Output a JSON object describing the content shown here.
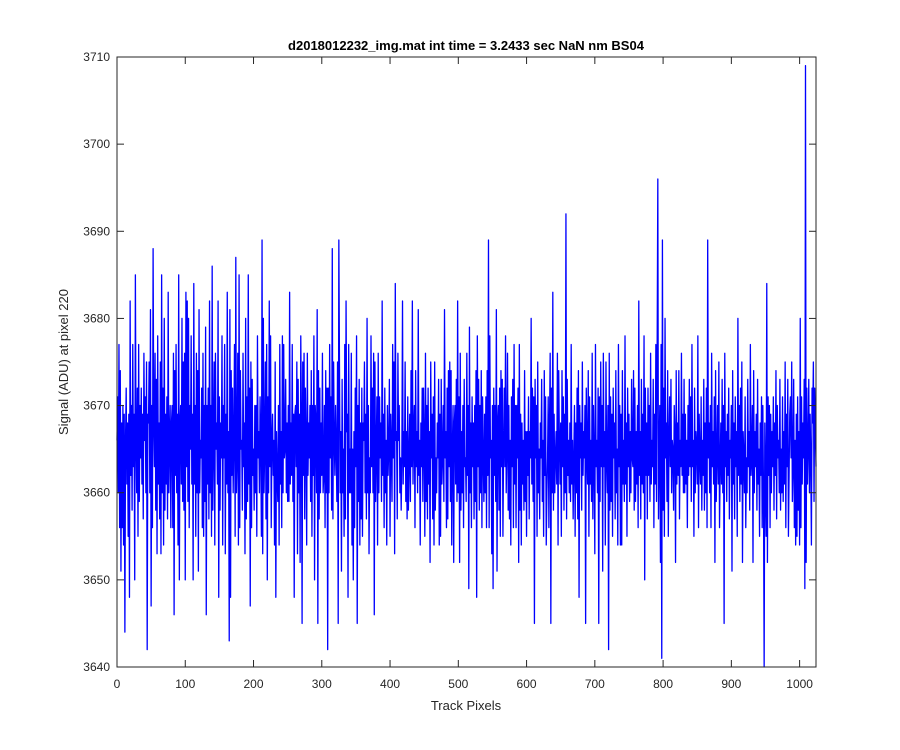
{
  "chart_data": {
    "type": "line",
    "title": "d2018012232_img.mat int time = 3.2433 sec  NaN nm BS04",
    "xlabel": "Track Pixels",
    "ylabel": "Signal (ADU) at pixel 220",
    "xlim": [
      0,
      1024
    ],
    "ylim": [
      3640,
      3710
    ],
    "xticks": [
      0,
      100,
      200,
      300,
      400,
      500,
      600,
      700,
      800,
      900,
      1000
    ],
    "yticks": [
      3640,
      3650,
      3660,
      3670,
      3680,
      3690,
      3700,
      3710
    ],
    "grid": false,
    "box": true,
    "line_color": "#0000ff",
    "axis_color": "#262626",
    "series": [
      {
        "values": [
          3666,
          3671,
          3660,
          3677,
          3656,
          3674,
          3651,
          3668,
          3656,
          3670,
          3654,
          3669,
          3644,
          3666,
          3672,
          3661,
          3668,
          3655,
          3669,
          3648,
          3682,
          3662,
          3670,
          3658,
          3677,
          3663,
          3669,
          3650,
          3685,
          3666,
          3660,
          3672,
          3655,
          3677,
          3659,
          3670,
          3664,
          3672,
          3661,
          3669,
          3657,
          3676,
          3666,
          3671,
          3660,
          3675,
          3642,
          3669,
          3668,
          3675,
          3660,
          3681,
          3647,
          3670,
          3656,
          3688,
          3668,
          3663,
          3676,
          3658,
          3673,
          3653,
          3678,
          3661,
          3668,
          3657,
          3675,
          3653,
          3685,
          3660,
          3672,
          3654,
          3680,
          3658,
          3669,
          3661,
          3671,
          3657,
          3683,
          3660,
          3666,
          3670,
          3656,
          3668,
          3670,
          3656,
          3676,
          3646,
          3674,
          3662,
          3677,
          3660,
          3669,
          3654,
          3685,
          3650,
          3668,
          3670,
          3661,
          3680,
          3659,
          3675,
          3658,
          3676,
          3650,
          3683,
          3663,
          3682,
          3659,
          3680,
          3656,
          3670,
          3665,
          3678,
          3661,
          3669,
          3650,
          3684,
          3661,
          3670,
          3655,
          3676,
          3660,
          3674,
          3651,
          3681,
          3660,
          3666,
          3664,
          3672,
          3656,
          3676,
          3655,
          3670,
          3659,
          3679,
          3646,
          3670,
          3661,
          3672,
          3657,
          3682,
          3660,
          3670,
          3655,
          3686,
          3658,
          3666,
          3675,
          3654,
          3676,
          3665,
          3668,
          3661,
          3682,
          3648,
          3671,
          3658,
          3668,
          3664,
          3678,
          3654,
          3670,
          3664,
          3677,
          3653,
          3669,
          3661,
          3683,
          3660,
          3667,
          3643,
          3681,
          3648,
          3674,
          3662,
          3672,
          3660,
          3666,
          3677,
          3655,
          3687,
          3660,
          3664,
          3676,
          3654,
          3685,
          3656,
          3674,
          3665,
          3666,
          3658,
          3676,
          3663,
          3668,
          3653,
          3680,
          3657,
          3671,
          3659,
          3685,
          3661,
          3672,
          3647,
          3675,
          3656,
          3673,
          3662,
          3665,
          3658,
          3670,
          3660,
          3670,
          3655,
          3678,
          3664,
          3667,
          3660,
          3671,
          3666,
          3655,
          3689,
          3653,
          3680,
          3660,
          3665,
          3675,
          3657,
          3677,
          3650,
          3671,
          3660,
          3682,
          3663,
          3678,
          3656,
          3666,
          3669,
          3662,
          3666,
          3654,
          3675,
          3648,
          3667,
          3662,
          3659,
          3670,
          3654,
          3677,
          3661,
          3667,
          3656,
          3678,
          3660,
          3677,
          3664,
          3665,
          3673,
          3660,
          3668,
          3659,
          3670,
          3659,
          3683,
          3661,
          3668,
          3662,
          3677,
          3659,
          3669,
          3648,
          3669,
          3670,
          3663,
          3675,
          3653,
          3673,
          3660,
          3669,
          3652,
          3678,
          3669,
          3645,
          3675,
          3662,
          3676,
          3657,
          3672,
          3666,
          3654,
          3676,
          3662,
          3668,
          3664,
          3670,
          3659,
          3674,
          3655,
          3670,
          3662,
          3678,
          3650,
          3670,
          3668,
          3660,
          3681,
          3645,
          3674,
          3657,
          3672,
          3660,
          3668,
          3662,
          3676,
          3660,
          3662,
          3670,
          3656,
          3674,
          3660,
          3672,
          3642,
          3672,
          3660,
          3677,
          3664,
          3671,
          3658,
          3688,
          3657,
          3675,
          3666,
          3662,
          3670,
          3665,
          3659,
          3675,
          3645,
          3689,
          3674,
          3660,
          3667,
          3651,
          3673,
          3660,
          3665,
          3655,
          3677,
          3657,
          3682,
          3667,
          3669,
          3648,
          3677,
          3660,
          3665,
          3660,
          3676,
          3654,
          3665,
          3650,
          3667,
          3656,
          3672,
          3663,
          3678,
          3645,
          3670,
          3659,
          3673,
          3654,
          3668,
          3657,
          3672,
          3655,
          3668,
          3666,
          3675,
          3660,
          3669,
          3657,
          3680,
          3660,
          3670,
          3653,
          3664,
          3660,
          3678,
          3663,
          3672,
          3660,
          3676,
          3646,
          3675,
          3659,
          3665,
          3671,
          3654,
          3676,
          3660,
          3671,
          3664,
          3668,
          3659,
          3682,
          3662,
          3669,
          3656,
          3672,
          3660,
          3666,
          3654,
          3670,
          3662,
          3665,
          3673,
          3655,
          3669,
          3665,
          3659,
          3677,
          3664,
          3675,
          3653,
          3684,
          3666,
          3667,
          3657,
          3676,
          3666,
          3670,
          3660,
          3664,
          3658,
          3664,
          3682,
          3661,
          3667,
          3663,
          3675,
          3659,
          3667,
          3657,
          3671,
          3658,
          3664,
          3669,
          3659,
          3674,
          3663,
          3682,
          3661,
          3667,
          3670,
          3656,
          3674,
          3663,
          3667,
          3660,
          3681,
          3662,
          3666,
          3654,
          3668,
          3663,
          3672,
          3659,
          3672,
          3666,
          3655,
          3676,
          3659,
          3670,
          3657,
          3672,
          3661,
          3667,
          3652,
          3675,
          3664,
          3669,
          3657,
          3671,
          3654,
          3675,
          3658,
          3664,
          3660,
          3668,
          3664,
          3673,
          3654,
          3669,
          3655,
          3673,
          3661,
          3664,
          3670,
          3659,
          3681,
          3664,
          3667,
          3656,
          3672,
          3657,
          3674,
          3663,
          3675,
          3659,
          3674,
          3654,
          3665,
          3670,
          3652,
          3668,
          3670,
          3661,
          3673,
          3659,
          3682,
          3660,
          3671,
          3652,
          3676,
          3658,
          3667,
          3660,
          3670,
          3656,
          3673,
          3663,
          3664,
          3659,
          3676,
          3662,
          3670,
          3649,
          3679,
          3660,
          3668,
          3656,
          3671,
          3663,
          3668,
          3657,
          3670,
          3659,
          3674,
          3648,
          3678,
          3663,
          3673,
          3658,
          3670,
          3660,
          3674,
          3656,
          3671,
          3664,
          3659,
          3669,
          3660,
          3671,
          3656,
          3674,
          3662,
          3689,
          3656,
          3678,
          3664,
          3666,
          3653,
          3670,
          3649,
          3672,
          3662,
          3670,
          3659,
          3681,
          3651,
          3668,
          3670,
          3658,
          3672,
          3655,
          3674,
          3663,
          3673,
          3655,
          3665,
          3672,
          3663,
          3678,
          3660,
          3665,
          3676,
          3658,
          3670,
          3657,
          3666,
          3654,
          3671,
          3663,
          3673,
          3656,
          3677,
          3661,
          3670,
          3656,
          3670,
          3664,
          3672,
          3652,
          3677,
          3658,
          3669,
          3654,
          3668,
          3661,
          3666,
          3658,
          3674,
          3659,
          3667,
          3655,
          3667,
          3662,
          3671,
          3657,
          3667,
          3664,
          3680,
          3661,
          3672,
          3659,
          3671,
          3645,
          3673,
          3664,
          3670,
          3655,
          3675,
          3660,
          3665,
          3657,
          3668,
          3664,
          3673,
          3659,
          3666,
          3655,
          3674,
          3662,
          3671,
          3654,
          3660,
          3664,
          3671,
          3656,
          3668,
          3676,
          3645,
          3672,
          3660,
          3683,
          3658,
          3669,
          3660,
          3664,
          3667,
          3661,
          3676,
          3654,
          3674,
          3666,
          3661,
          3668,
          3655,
          3674,
          3663,
          3671,
          3658,
          3669,
          3660,
          3692,
          3657,
          3673,
          3662,
          3666,
          3660,
          3668,
          3659,
          3677,
          3661,
          3666,
          3657,
          3664,
          3670,
          3655,
          3668,
          3660,
          3672,
          3657,
          3674,
          3648,
          3670,
          3664,
          3668,
          3658,
          3675,
          3662,
          3667,
          3664,
          3670,
          3645,
          3672,
          3665,
          3661,
          3674,
          3655,
          3671,
          3661,
          3666,
          3659,
          3676,
          3657,
          3670,
          3664,
          3653,
          3677,
          3663,
          3666,
          3660,
          3672,
          3645,
          3671,
          3659,
          3675,
          3663,
          3670,
          3651,
          3676,
          3663,
          3667,
          3654,
          3675,
          3664,
          3660,
          3670,
          3642,
          3676,
          3658,
          3671,
          3659,
          3669,
          3655,
          3672,
          3664,
          3668,
          3657,
          3674,
          3660,
          3665,
          3654,
          3677,
          3663,
          3670,
          3654,
          3669,
          3654,
          3674,
          3661,
          3666,
          3659,
          3678,
          3661,
          3668,
          3655,
          3672,
          3663,
          3669,
          3659,
          3667,
          3660,
          3673,
          3664,
          3663,
          3674,
          3658,
          3672,
          3659,
          3667,
          3661,
          3670,
          3656,
          3682,
          3662,
          3667,
          3657,
          3673,
          3661,
          3669,
          3660,
          3678,
          3650,
          3672,
          3662,
          3668,
          3657,
          3672,
          3662,
          3670,
          3659,
          3676,
          3661,
          3666,
          3663,
          3673,
          3656,
          3669,
          3661,
          3677,
          3659,
          3677,
          3696,
          3657,
          3664,
          3670,
          3652,
          3677,
          3641,
          3689,
          3658,
          3672,
          3655,
          3680,
          3664,
          3668,
          3659,
          3674,
          3655,
          3666,
          3671,
          3663,
          3673,
          3660,
          3666,
          3665,
          3658,
          3670,
          3667,
          3652,
          3674,
          3661,
          3668,
          3662,
          3674,
          3657,
          3666,
          3663,
          3676,
          3662,
          3669,
          3660,
          3673,
          3660,
          3669,
          3661,
          3666,
          3656,
          3670,
          3662,
          3673,
          3663,
          3671,
          3659,
          3677,
          3663,
          3666,
          3655,
          3672,
          3660,
          3667,
          3665,
          3661,
          3678,
          3656,
          3669,
          3664,
          3661,
          3671,
          3658,
          3666,
          3662,
          3673,
          3658,
          3668,
          3660,
          3672,
          3656,
          3689,
          3664,
          3668,
          3660,
          3670,
          3656,
          3676,
          3663,
          3667,
          3661,
          3671,
          3652,
          3674,
          3659,
          3664,
          3670,
          3661,
          3675,
          3656,
          3663,
          3668,
          3661,
          3673,
          3660,
          3670,
          3645,
          3676,
          3663,
          3667,
          3659,
          3669,
          3662,
          3672,
          3657,
          3666,
          3664,
          3670,
          3651,
          3674,
          3661,
          3668,
          3657,
          3671,
          3663,
          3667,
          3655,
          3680,
          3662,
          3670,
          3659,
          3672,
          3661,
          3675,
          3652,
          3667,
          3664,
          3660,
          3671,
          3656,
          3664,
          3660,
          3673,
          3663,
          3667,
          3658,
          3677,
          3662,
          3664,
          3670,
          3652,
          3674,
          3660,
          3667,
          3663,
          3669,
          3658,
          3673,
          3661,
          3665,
          3655,
          3668,
          3662,
          3671,
          3656,
          3670,
          3660,
          3640,
          3668,
          3661,
          3655,
          3684,
          3652,
          3671,
          3662,
          3670,
          3656,
          3669,
          3660,
          3667,
          3663,
          3671,
          3658,
          3668,
          3662,
          3674,
          3657,
          3670,
          3664,
          3666,
          3660,
          3673,
          3658,
          3665,
          3660,
          3671,
          3659,
          3667,
          3661,
          3675,
          3656,
          3669,
          3663,
          3673,
          3655,
          3662,
          3669,
          3671,
          3664,
          3675,
          3659,
          3663,
          3673,
          3656,
          3666,
          3654,
          3669,
          3655,
          3671,
          3658,
          3667,
          3654,
          3680,
          3656,
          3671,
          3661,
          3668,
          3664,
          3673,
          3649,
          3709,
          3652,
          3672,
          3661,
          3665,
          3673,
          3660,
          3669,
          3664,
          3654,
          3672,
          3668,
          3675,
          3659,
          3672,
          3667,
          3663
        ]
      }
    ]
  }
}
